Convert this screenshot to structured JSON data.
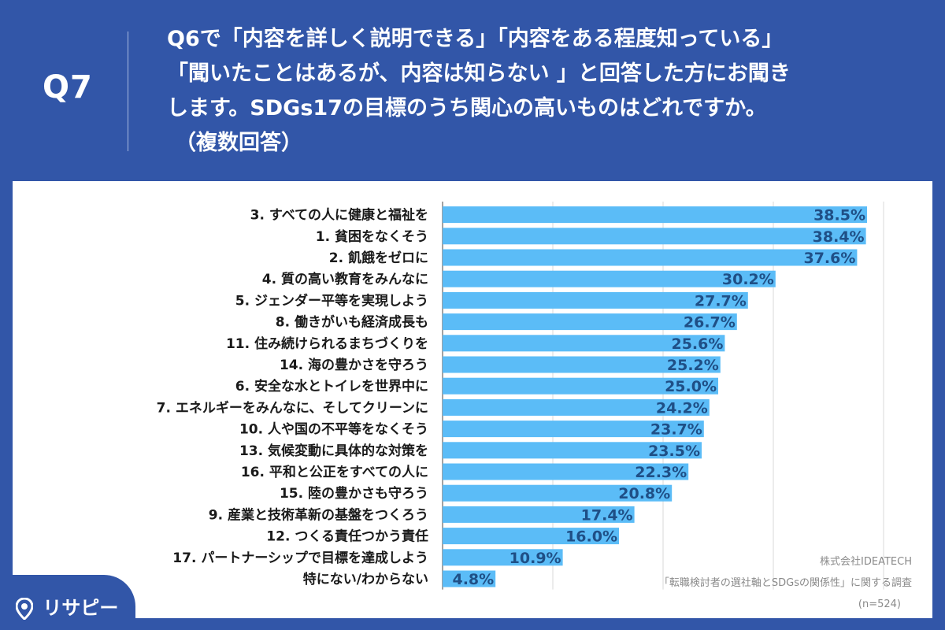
{
  "header": {
    "question_number": "Q7",
    "question_lines": [
      "Q6で「内容を詳しく説明できる」「内容をある程度知っている」",
      "「聞いたことはあるが、内容は知らない 」と回答した方にお聞き",
      "します。SDGs17の目標のうち関心の高いものはどれですか。",
      "（複数回答）"
    ]
  },
  "chart_data": {
    "type": "bar",
    "orientation": "horizontal",
    "categories": [
      "3. すべての人に健康と福祉を",
      "1. 貧困をなくそう",
      "2. 飢餓をゼロに",
      "4. 質の高い教育をみんなに",
      "5. ジェンダー平等を実現しよう",
      "8. 働きがいも経済成長も",
      "11. 住み続けられるまちづくりを",
      "14. 海の豊かさを守ろう",
      "6. 安全な水とトイレを世界中に",
      "7. エネルギーをみんなに、そしてクリーンに",
      "10. 人や国の不平等をなくそう",
      "13. 気候変動に具体的な対策を",
      "16. 平和と公正をすべての人に",
      "15. 陸の豊かさも守ろう",
      "9. 産業と技術革新の基盤をつくろう",
      "12. つくる責任つかう責任",
      "17. パートナーシップで目標を達成しよう",
      "特にない/わからない"
    ],
    "values": [
      38.5,
      38.4,
      37.6,
      30.2,
      27.7,
      26.7,
      25.6,
      25.2,
      25.0,
      24.2,
      23.7,
      23.5,
      22.3,
      20.8,
      17.4,
      16.0,
      10.9,
      4.8
    ],
    "value_labels": [
      "38.5%",
      "38.4%",
      "37.6%",
      "30.2%",
      "27.7%",
      "26.7%",
      "25.6%",
      "25.2%",
      "25.0%",
      "24.2%",
      "23.7%",
      "23.5%",
      "22.3%",
      "20.8%",
      "17.4%",
      "16.0%",
      "10.9%",
      "4.8%"
    ],
    "xlim": [
      0,
      40
    ],
    "grid": true,
    "bar_color": "#5bbcf7",
    "label_color": "#1f4f86"
  },
  "footer": {
    "company": "株式会社IDEATECH",
    "survey": "「転職検討者の選社軸とSDGsの関係性」に関する調査",
    "sample": "(n=524)"
  },
  "logo": {
    "text": "リサピー",
    "icon": "location-pin-icon"
  },
  "colors": {
    "background": "#3256a8",
    "panel": "#ffffff"
  }
}
